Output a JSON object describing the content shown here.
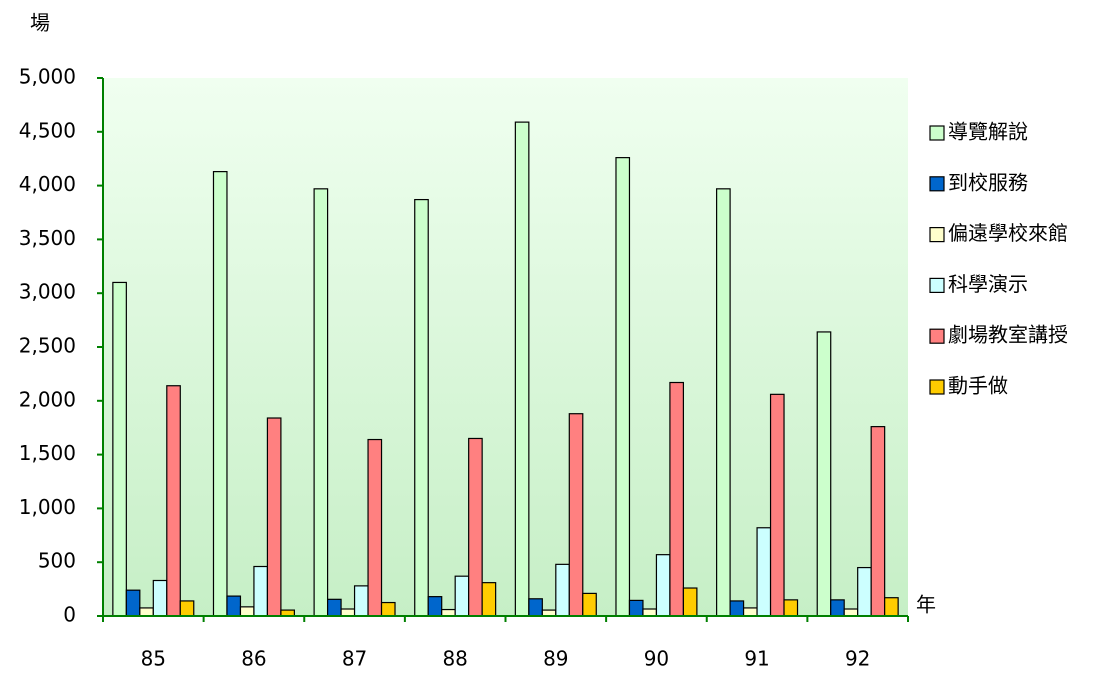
{
  "chart_data": {
    "type": "bar",
    "y_label": "場",
    "x_label": "年",
    "categories": [
      "85",
      "86",
      "87",
      "88",
      "89",
      "90",
      "91",
      "92"
    ],
    "series": [
      {
        "name": "導覽解說",
        "color": "#ccffcc",
        "values": [
          3100,
          4130,
          3970,
          3870,
          4590,
          4260,
          3970,
          2640
        ]
      },
      {
        "name": "到校服務",
        "color": "#0066cc",
        "values": [
          240,
          185,
          155,
          180,
          160,
          145,
          140,
          150
        ]
      },
      {
        "name": "偏遠學校來館",
        "color": "#ffffcc",
        "values": [
          75,
          85,
          65,
          60,
          55,
          65,
          75,
          65
        ]
      },
      {
        "name": "科學演示",
        "color": "#ccffff",
        "values": [
          330,
          460,
          280,
          370,
          480,
          570,
          820,
          450
        ]
      },
      {
        "name": "劇場教室講授",
        "color": "#ff8080",
        "values": [
          2140,
          1840,
          1640,
          1650,
          1880,
          2170,
          2060,
          1760
        ]
      },
      {
        "name": "動手做",
        "color": "#ffcc00",
        "values": [
          140,
          55,
          125,
          310,
          210,
          260,
          150,
          170
        ]
      }
    ],
    "ylim": [
      0,
      5000
    ],
    "yticks": [
      0,
      500,
      {
        "value": 1000,
        "label": "1,000"
      },
      {
        "value": 1500,
        "label": "1,500"
      },
      {
        "value": 2000,
        "label": "2,000"
      },
      {
        "value": 2500,
        "label": "2,500"
      },
      {
        "value": 3000,
        "label": "3,000"
      },
      {
        "value": 3500,
        "label": "3,500"
      },
      {
        "value": 4000,
        "label": "4,000"
      },
      {
        "value": 4500,
        "label": "4,500"
      },
      {
        "value": 5000,
        "label": "5,000"
      }
    ],
    "legend": "right"
  }
}
